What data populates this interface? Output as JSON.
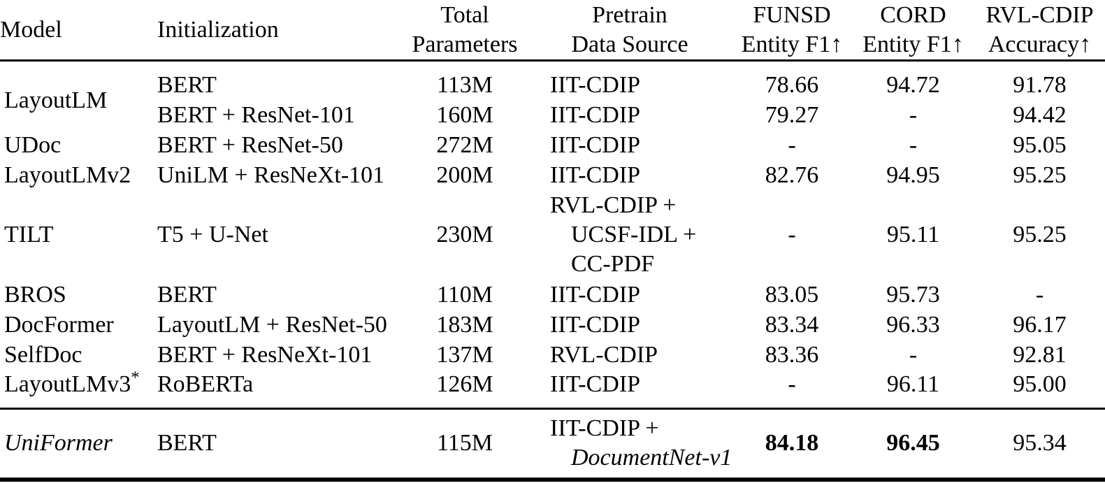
{
  "header": {
    "model": "Model",
    "initialization": "Initialization",
    "total_parameters": [
      "Total",
      "Parameters"
    ],
    "pretrain_data_source": [
      "Pretrain",
      "Data Source"
    ],
    "funsd": [
      "FUNSD",
      "Entity F1↑"
    ],
    "cord": [
      "CORD",
      "Entity F1↑"
    ],
    "rvl_cdip": [
      "RVL-CDIP",
      "Accuracy↑"
    ]
  },
  "rows": [
    {
      "model": "LayoutLM",
      "init": "BERT",
      "params": "113M",
      "pretrain": [
        "IIT-CDIP"
      ],
      "funsd": "78.66",
      "cord": "94.72",
      "rvl_cdip": "91.78"
    },
    {
      "init": "BERT + ResNet-101",
      "params": "160M",
      "pretrain": [
        "IIT-CDIP"
      ],
      "funsd": "79.27",
      "cord": "-",
      "rvl_cdip": "94.42"
    },
    {
      "model": "UDoc",
      "init": "BERT + ResNet-50",
      "params": "272M",
      "pretrain": [
        "IIT-CDIP"
      ],
      "funsd": "-",
      "cord": "-",
      "rvl_cdip": "95.05"
    },
    {
      "model": "LayoutLMv2",
      "init": "UniLM + ResNeXt-101",
      "params": "200M",
      "pretrain": [
        "IIT-CDIP"
      ],
      "funsd": "82.76",
      "cord": "94.95",
      "rvl_cdip": "95.25"
    },
    {
      "model": "TILT",
      "init": "T5 + U-Net",
      "params": "230M",
      "pretrain": [
        "RVL-CDIP +",
        "UCSF-IDL +",
        "CC-PDF"
      ],
      "funsd": "-",
      "cord": "95.11",
      "rvl_cdip": "95.25"
    },
    {
      "model": "BROS",
      "init": "BERT",
      "params": "110M",
      "pretrain": [
        "IIT-CDIP"
      ],
      "funsd": "83.05",
      "cord": "95.73",
      "rvl_cdip": "-"
    },
    {
      "model": "DocFormer",
      "init": "LayoutLM + ResNet-50",
      "params": "183M",
      "pretrain": [
        "IIT-CDIP"
      ],
      "funsd": "83.34",
      "cord": "96.33",
      "rvl_cdip": "96.17"
    },
    {
      "model": "SelfDoc",
      "init": "BERT + ResNeXt-101",
      "params": "137M",
      "pretrain": [
        "RVL-CDIP"
      ],
      "funsd": "83.36",
      "cord": "-",
      "rvl_cdip": "92.81"
    },
    {
      "model": "LayoutLMv3",
      "model_sup": "*",
      "init": "RoBERTa",
      "params": "126M",
      "pretrain": [
        "IIT-CDIP"
      ],
      "funsd": "-",
      "cord": "96.11",
      "rvl_cdip": "95.00"
    },
    {
      "model": "UniFormer",
      "init": "BERT",
      "params": "115M",
      "pretrain": [
        "IIT-CDIP +",
        "DocumentNet-v1"
      ],
      "funsd": "84.18",
      "cord": "96.45",
      "rvl_cdip": "95.34"
    }
  ]
}
